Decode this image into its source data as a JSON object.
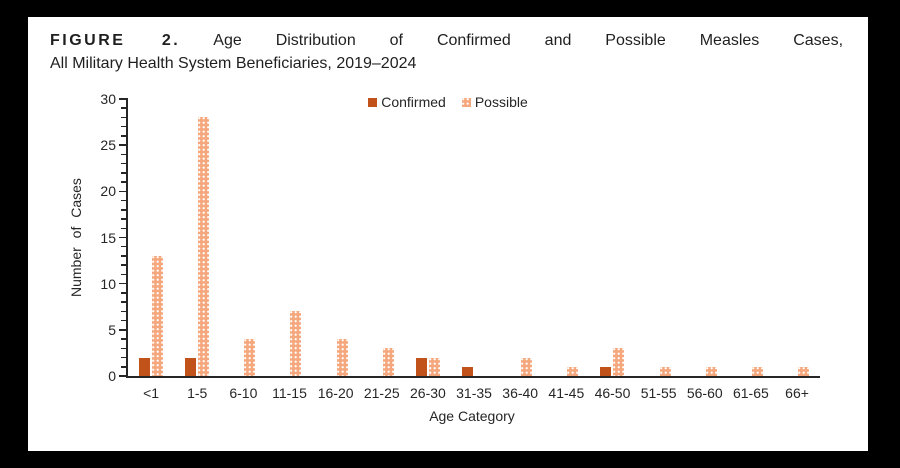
{
  "figure": {
    "label": "FIGURE 2.",
    "title_rest": "Age Distribution of Confirmed and Possible Measles Cases,",
    "title_line2": "All Military Health System Beneficiaries, 2019–2024"
  },
  "chart_data": {
    "type": "bar",
    "title": "FIGURE 2. Age Distribution of Confirmed and Possible Measles Cases, All Military Health System Beneficiaries, 2019–2024",
    "categories": [
      "<1",
      "1-5",
      "6-10",
      "11-15",
      "16-20",
      "21-25",
      "26-30",
      "31-35",
      "36-40",
      "41-45",
      "46-50",
      "51-55",
      "56-60",
      "61-65",
      "66+"
    ],
    "series": [
      {
        "name": "Confirmed",
        "color": "#c0521a",
        "pattern": "solid",
        "values": [
          2,
          2,
          0,
          0,
          0,
          0,
          2,
          1,
          0,
          0,
          1,
          0,
          0,
          0,
          0
        ]
      },
      {
        "name": "Possible",
        "color": "#f5a77d",
        "pattern": "dots",
        "values": [
          13,
          28,
          4,
          7,
          4,
          3,
          2,
          0,
          2,
          1,
          3,
          1,
          1,
          1,
          1
        ]
      }
    ],
    "xlabel": "Age Category",
    "ylabel": "Number of Cases",
    "ylim": [
      0,
      30
    ],
    "y_major_step": 5,
    "y_minor_step": 1,
    "grid": false,
    "legend_position": "top-center",
    "colors": {
      "axis": "#262626",
      "confirmed": "#c0521a",
      "possible": "#f5a77d",
      "frame": "#000000",
      "background": "#ffffff"
    }
  }
}
